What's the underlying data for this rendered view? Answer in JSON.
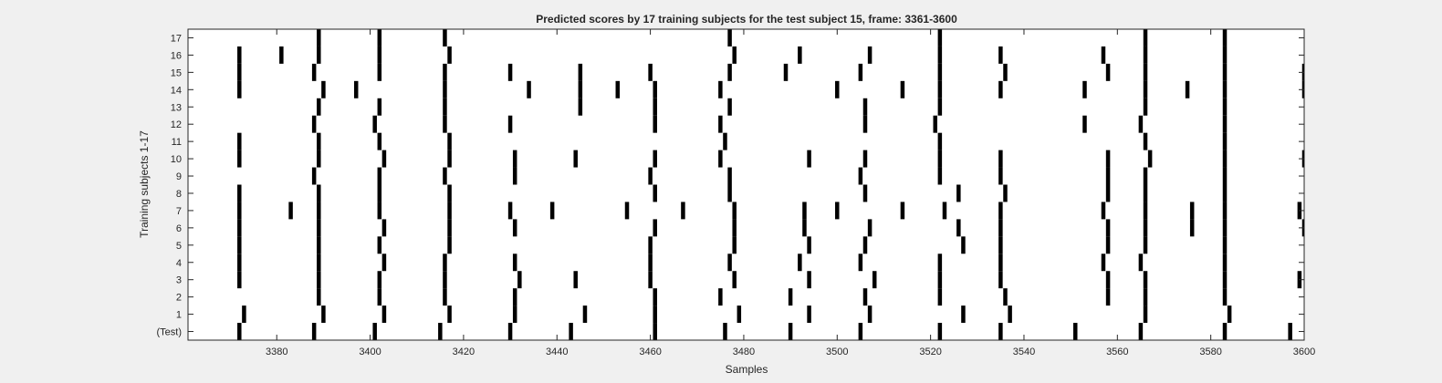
{
  "chart_data": {
    "type": "heatmap",
    "title": "Predicted scores by 17 training subjects for the test subject 15, frame: 3361-3600",
    "xlabel": "Samples",
    "ylabel": "Training subjects 1-17",
    "xlim": [
      3361,
      3600
    ],
    "x_ticks": [
      3380,
      3400,
      3420,
      3440,
      3460,
      3480,
      3500,
      3520,
      3540,
      3560,
      3580,
      3600
    ],
    "row_labels": [
      "(Test)",
      "1",
      "2",
      "3",
      "4",
      "5",
      "6",
      "7",
      "8",
      "9",
      "10",
      "11",
      "12",
      "13",
      "14",
      "15",
      "16",
      "17"
    ],
    "rows": [
      {
        "label": "(Test)",
        "events": [
          3372,
          3388,
          3401,
          3415,
          3430,
          3443,
          3461,
          3476,
          3490,
          3505,
          3522,
          3535,
          3551,
          3565,
          3583,
          3597
        ]
      },
      {
        "label": "1",
        "events": [
          3373,
          3390,
          3403,
          3417,
          3431,
          3446,
          3461,
          3479,
          3494,
          3507,
          3527,
          3537,
          3566,
          3584
        ]
      },
      {
        "label": "2",
        "events": [
          3389,
          3402,
          3416,
          3431,
          3461,
          3475,
          3490,
          3506,
          3522,
          3536,
          3558,
          3566,
          3583
        ]
      },
      {
        "label": "3",
        "events": [
          3372,
          3389,
          3402,
          3416,
          3432,
          3444,
          3460,
          3478,
          3494,
          3508,
          3522,
          3535,
          3558,
          3566,
          3583,
          3599
        ]
      },
      {
        "label": "4",
        "events": [
          3372,
          3389,
          3403,
          3416,
          3431,
          3460,
          3477,
          3492,
          3505,
          3522,
          3535,
          3557,
          3565,
          3583
        ]
      },
      {
        "label": "5",
        "events": [
          3372,
          3389,
          3402,
          3417,
          3460,
          3478,
          3494,
          3506,
          3527,
          3535,
          3558,
          3566,
          3583
        ]
      },
      {
        "label": "6",
        "events": [
          3372,
          3389,
          3403,
          3417,
          3431,
          3461,
          3478,
          3493,
          3507,
          3526,
          3535,
          3558,
          3566,
          3576,
          3583,
          3600
        ]
      },
      {
        "label": "7",
        "events": [
          3372,
          3383,
          3389,
          3402,
          3417,
          3430,
          3439,
          3455,
          3467,
          3478,
          3493,
          3500,
          3514,
          3523,
          3535,
          3557,
          3566,
          3576,
          3583,
          3599
        ]
      },
      {
        "label": "8",
        "events": [
          3372,
          3389,
          3402,
          3417,
          3461,
          3477,
          3506,
          3526,
          3536,
          3558,
          3566,
          3583
        ]
      },
      {
        "label": "9",
        "events": [
          3388,
          3402,
          3416,
          3431,
          3460,
          3477,
          3505,
          3522,
          3535,
          3558,
          3566,
          3583
        ]
      },
      {
        "label": "10",
        "events": [
          3372,
          3389,
          3403,
          3417,
          3431,
          3444,
          3461,
          3475,
          3494,
          3506,
          3522,
          3535,
          3558,
          3567,
          3583,
          3600
        ]
      },
      {
        "label": "11",
        "events": [
          3372,
          3389,
          3402,
          3417,
          3476,
          3522,
          3566,
          3583
        ]
      },
      {
        "label": "12",
        "events": [
          3388,
          3401,
          3416,
          3430,
          3461,
          3475,
          3506,
          3521,
          3553,
          3565,
          3583
        ]
      },
      {
        "label": "13",
        "events": [
          3389,
          3402,
          3416,
          3445,
          3461,
          3477,
          3506,
          3522,
          3566,
          3583
        ]
      },
      {
        "label": "14",
        "events": [
          3372,
          3390,
          3397,
          3416,
          3434,
          3445,
          3453,
          3461,
          3475,
          3500,
          3514,
          3522,
          3535,
          3553,
          3566,
          3575,
          3583,
          3600
        ]
      },
      {
        "label": "15",
        "events": [
          3372,
          3388,
          3402,
          3416,
          3430,
          3445,
          3460,
          3477,
          3489,
          3505,
          3522,
          3536,
          3558,
          3566,
          3583,
          3600
        ]
      },
      {
        "label": "16",
        "events": [
          3372,
          3381,
          3389,
          3402,
          3417,
          3478,
          3492,
          3507,
          3522,
          3535,
          3557,
          3566,
          3583
        ]
      },
      {
        "label": "17",
        "events": [
          3389,
          3402,
          3416,
          3477,
          3522,
          3566,
          3583
        ]
      }
    ],
    "colors": {
      "mark": "#000000",
      "plot_bg": "#ffffff",
      "figure_bg": "#f0f0f0",
      "axis": "#262626"
    },
    "grid": false,
    "legend": false
  }
}
